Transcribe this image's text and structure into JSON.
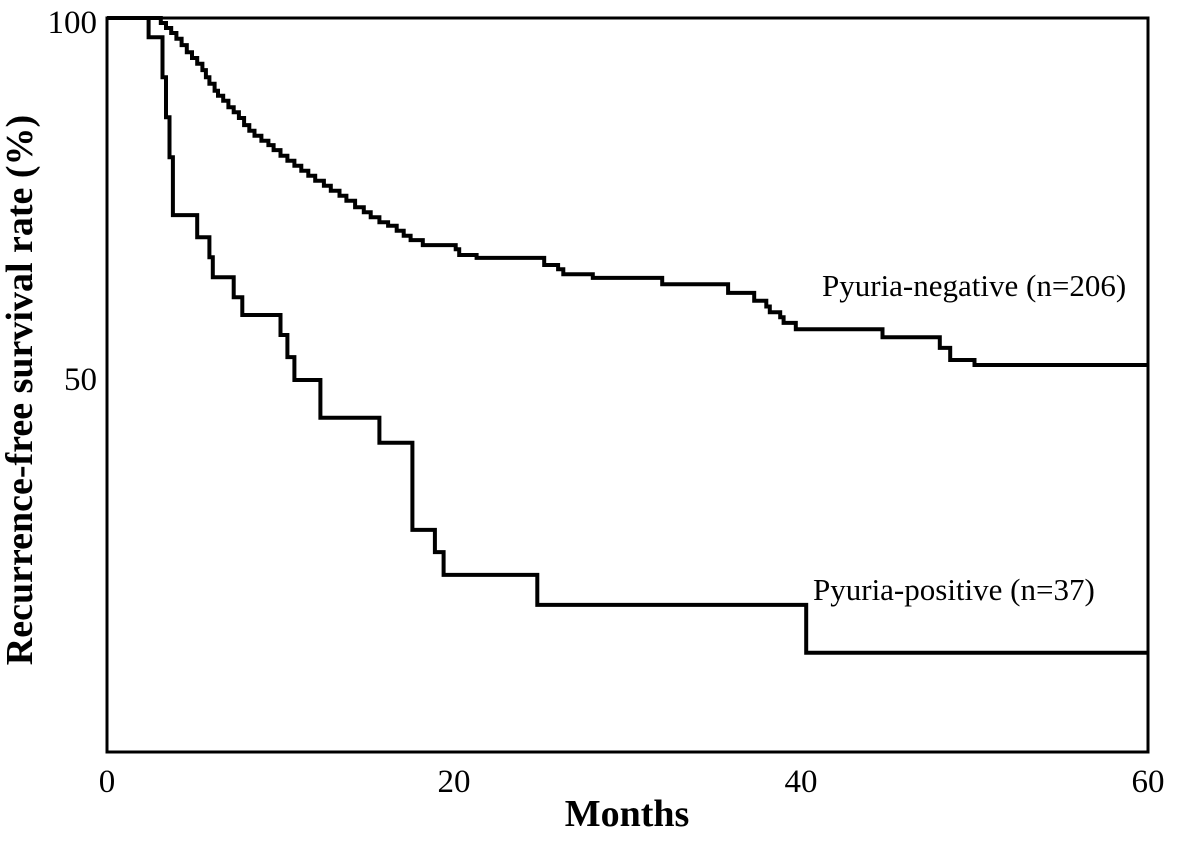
{
  "figure": {
    "background_color": "#ffffff",
    "line_color": "#000000"
  },
  "chart_data": {
    "type": "line",
    "subtype": "kaplan-meier-step",
    "title": "",
    "xlabel": "Months",
    "ylabel": "Recurrence-free survival rate (%)",
    "xlim": [
      0,
      60
    ],
    "ylim": [
      0,
      100
    ],
    "x_ticks": [
      0,
      20,
      40,
      60
    ],
    "y_ticks": [
      100,
      50
    ],
    "grid": false,
    "legend_position": "inline-annotations",
    "series": [
      {
        "name": "Pyuria-negative (n=206)",
        "n": 206,
        "color": "#000000",
        "start": [
          0,
          100
        ],
        "steps": [
          [
            3.1,
            99.3
          ],
          [
            3.4,
            98.6
          ],
          [
            3.7,
            97.9
          ],
          [
            4.0,
            97.1
          ],
          [
            4.3,
            96.2
          ],
          [
            4.6,
            95.2
          ],
          [
            4.9,
            94.4
          ],
          [
            5.2,
            93.6
          ],
          [
            5.5,
            92.7
          ],
          [
            5.7,
            91.7
          ],
          [
            5.9,
            90.8
          ],
          [
            6.2,
            89.8
          ],
          [
            6.4,
            89.1
          ],
          [
            6.7,
            88.4
          ],
          [
            7.0,
            87.5
          ],
          [
            7.3,
            86.8
          ],
          [
            7.6,
            86.0
          ],
          [
            7.9,
            85.0
          ],
          [
            8.2,
            84.2
          ],
          [
            8.5,
            83.5
          ],
          [
            8.9,
            82.8
          ],
          [
            9.3,
            82.2
          ],
          [
            9.6,
            81.5
          ],
          [
            10.0,
            80.7
          ],
          [
            10.4,
            80.0
          ],
          [
            10.8,
            79.3
          ],
          [
            11.2,
            78.6
          ],
          [
            11.6,
            77.9
          ],
          [
            12.0,
            77.2
          ],
          [
            12.5,
            76.5
          ],
          [
            12.9,
            75.8
          ],
          [
            13.4,
            75.1
          ],
          [
            13.8,
            74.4
          ],
          [
            14.3,
            73.5
          ],
          [
            14.8,
            72.8
          ],
          [
            15.2,
            72.1
          ],
          [
            15.7,
            71.4
          ],
          [
            16.2,
            70.9
          ],
          [
            16.7,
            70.2
          ],
          [
            17.1,
            69.5
          ],
          [
            17.5,
            68.9
          ],
          [
            18.2,
            68.2
          ],
          [
            20.1,
            67.6
          ],
          [
            20.3,
            66.8
          ],
          [
            21.3,
            66.4
          ],
          [
            25.2,
            65.4
          ],
          [
            26.0,
            64.8
          ],
          [
            26.3,
            64.1
          ],
          [
            28.0,
            63.6
          ],
          [
            32.0,
            62.7
          ],
          [
            35.8,
            61.5
          ],
          [
            37.3,
            60.4
          ],
          [
            38.0,
            59.6
          ],
          [
            38.2,
            58.8
          ],
          [
            38.8,
            58.1
          ],
          [
            39.0,
            57.3
          ],
          [
            39.7,
            56.4
          ],
          [
            44.7,
            55.3
          ],
          [
            48.0,
            53.8
          ],
          [
            48.6,
            52.1
          ],
          [
            50.0,
            51.4
          ]
        ]
      },
      {
        "name": "Pyuria-positive (n=37)",
        "n": 37,
        "color": "#000000",
        "start": [
          0,
          100
        ],
        "steps": [
          [
            2.4,
            97.3
          ],
          [
            3.2,
            91.7
          ],
          [
            3.4,
            86.1
          ],
          [
            3.6,
            80.5
          ],
          [
            3.8,
            72.4
          ],
          [
            5.2,
            69.3
          ],
          [
            5.9,
            66.5
          ],
          [
            6.1,
            63.7
          ],
          [
            7.3,
            60.9
          ],
          [
            7.8,
            58.4
          ],
          [
            10.0,
            55.6
          ],
          [
            10.4,
            52.5
          ],
          [
            10.8,
            49.3
          ],
          [
            12.3,
            44.0
          ],
          [
            15.7,
            40.5
          ],
          [
            17.6,
            28.3
          ],
          [
            18.9,
            25.2
          ],
          [
            19.4,
            22.0
          ],
          [
            24.8,
            17.8
          ],
          [
            40.3,
            11.1
          ]
        ]
      }
    ]
  }
}
